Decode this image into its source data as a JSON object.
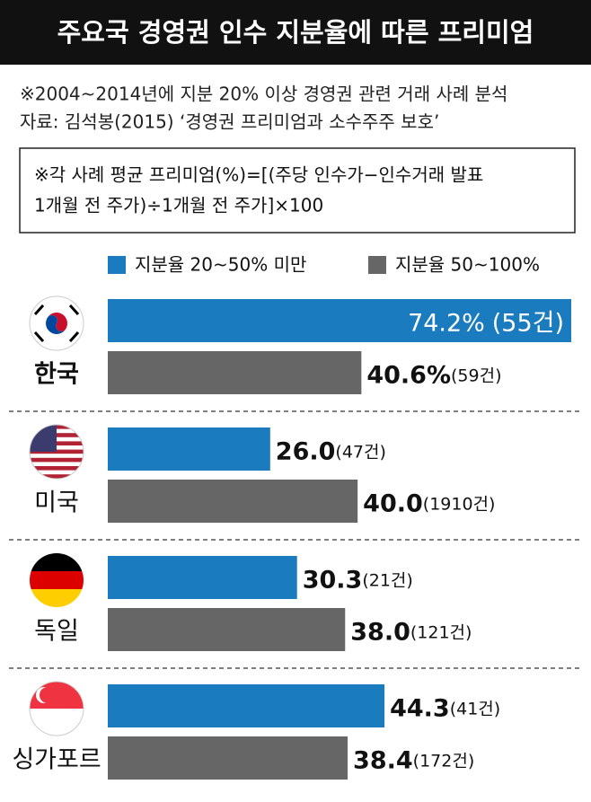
{
  "chart_data": {
    "type": "bar",
    "orientation": "horizontal",
    "title": "주요국 경영권 인수 지분율에 따른 프리미엄",
    "subtitle": [
      "※2004~2014년에 지분 20% 이상 경영권 관련 거래 사례 분석",
      "자료: 김석봉(2015) ‘경영권 프리미엄과 소수주주 보호’"
    ],
    "note": [
      "※각 사례 평균 프리미엄(%)=[(주당 인수가−인수거래 발표",
      "1개월 전 주가)÷1개월 전 주가]×100"
    ],
    "categories": [
      "한국",
      "미국",
      "독일",
      "싱가포르"
    ],
    "series": [
      {
        "name": "지분율 20~50% 미만",
        "color": "#1a7bbf",
        "values": [
          74.2,
          26.0,
          30.3,
          44.3
        ],
        "value_labels": [
          "74.2%",
          "26.0",
          "30.3",
          "44.3"
        ],
        "count_labels": [
          "(55건)",
          "(47건)",
          "(21건)",
          "(41건)"
        ]
      },
      {
        "name": "지분율 50~100%",
        "color": "#666666",
        "values": [
          40.6,
          40.0,
          38.0,
          38.4
        ],
        "value_labels": [
          "40.6%",
          "40.0",
          "38.0",
          "38.4"
        ],
        "count_labels": [
          "(59건)",
          "(1910건)",
          "(121건)",
          "(172건)"
        ]
      }
    ]
  }
}
